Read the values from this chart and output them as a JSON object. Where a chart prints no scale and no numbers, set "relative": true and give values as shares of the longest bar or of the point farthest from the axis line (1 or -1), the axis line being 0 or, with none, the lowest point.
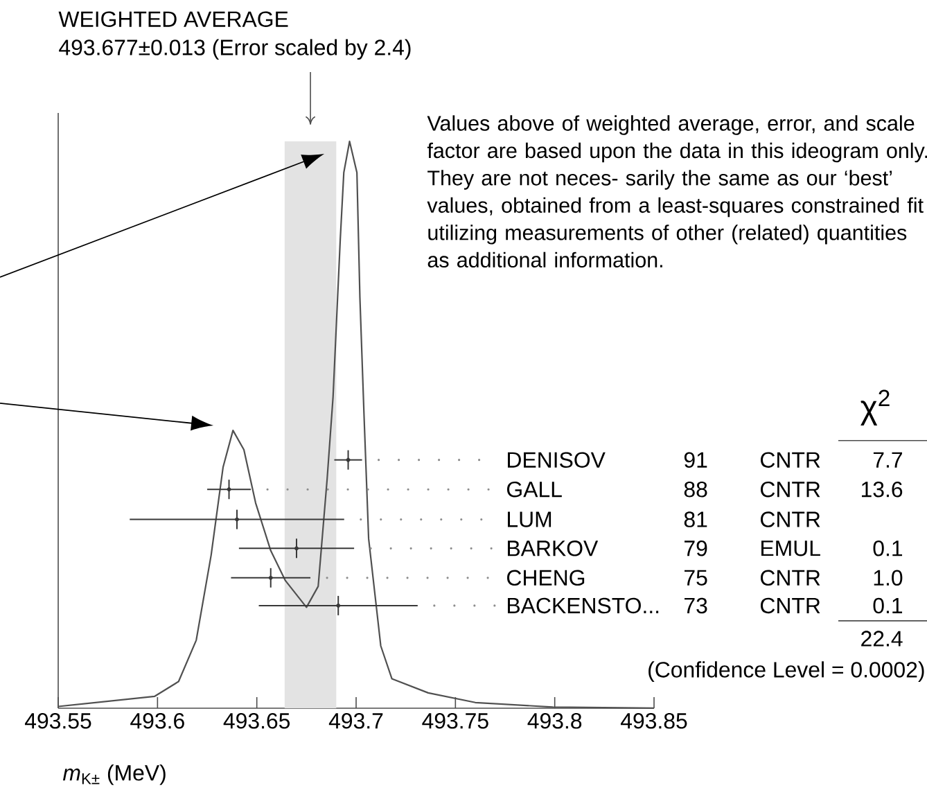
{
  "chart_data": {
    "type": "line",
    "title": "WEIGHTED AVERAGE",
    "subtitle": "493.677±0.013 (Error scaled by 2.4)",
    "xlabel": "*m*$_{K±}$ (MeV)",
    "relative": true,
    "xlim": [
      493.55,
      493.85
    ],
    "xticks": [
      493.55,
      493.6,
      493.65,
      493.7,
      493.75,
      493.8,
      493.85
    ],
    "bands": [
      {
        "axis": "x",
        "from": 493.664,
        "to": 493.69,
        "color": "#e3e3e3"
      }
    ],
    "series": [
      {
        "type": "line",
        "color": "#505050",
        "x": [
          493.55,
          493.5986,
          493.6106,
          493.6195,
          493.627,
          493.633,
          493.638,
          493.6435,
          493.6494,
          493.657,
          493.6644,
          493.675,
          493.6809,
          493.6854,
          493.6884,
          493.692,
          493.6938,
          493.6967,
          493.7004,
          493.7019,
          493.704,
          493.7063,
          493.7124,
          493.718,
          493.7363,
          493.76,
          493.799,
          493.85
        ],
        "values": [
          0.003,
          0.021,
          0.047,
          0.12,
          0.27,
          0.425,
          0.49,
          0.456,
          0.362,
          0.278,
          0.225,
          0.178,
          0.215,
          0.404,
          0.55,
          0.826,
          0.945,
          1.0,
          0.945,
          0.725,
          0.515,
          0.299,
          0.11,
          0.052,
          0.027,
          0.01,
          0.002,
          0.0
        ]
      },
      {
        "type": "scatter",
        "color": "#383838",
        "x": [
          493.696,
          493.636,
          493.64,
          493.67,
          493.657,
          493.691
        ],
        "values": [
          0.438,
          0.386,
          0.333,
          0.282,
          0.23,
          0.181
        ],
        "xerrors": [
          0.007,
          0.011,
          0.054,
          0.029,
          0.02,
          0.04
        ]
      }
    ],
    "annotations": [
      "Values above of weighted average, error, and scale factor are based upon the data in this ideogram only.  They are not neces- sarily the same as our ‘best’ values, obtained from a least-squares constrained fit utilizing measurements of other (related) quantities as additional information.",
      "χ$^{2}$",
      "DENISOV",
      "91",
      "CNTR",
      "7.7",
      "GALL",
      "88",
      "CNTR",
      "13.6",
      "LUM",
      "81",
      "CNTR",
      "BARKOV",
      "79",
      "EMUL",
      "0.1",
      "CHENG",
      "75",
      "CNTR",
      "1.0",
      "BACKENSTO...",
      "73",
      "CNTR",
      "0.1",
      "22.4",
      "(Confidence Level = 0.0002)"
    ]
  }
}
